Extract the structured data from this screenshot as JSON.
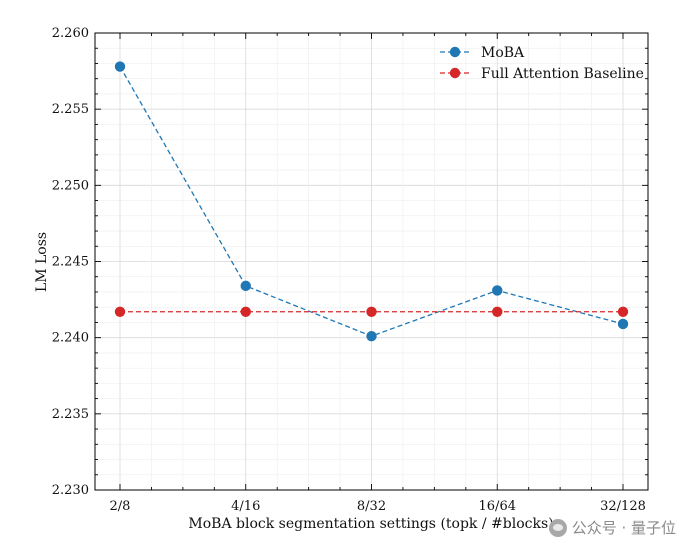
{
  "chart_data": {
    "type": "line",
    "title": "",
    "xlabel": "MoBA block segmentation settings (topk / #blocks)",
    "ylabel": "LM Loss",
    "categories": [
      "2/8",
      "4/16",
      "8/32",
      "16/64",
      "32/128"
    ],
    "ylim": [
      2.23,
      2.26
    ],
    "yticks": [
      "2.230",
      "2.235",
      "2.240",
      "2.245",
      "2.250",
      "2.255",
      "2.260"
    ],
    "grid": true,
    "legend_position": "top-right",
    "series": [
      {
        "name": "MoBA",
        "color": "#1f77b4",
        "values": [
          2.2578,
          2.2434,
          2.2401,
          2.2431,
          2.2409
        ]
      },
      {
        "name": "Full Attention Baseline",
        "color": "#d62728",
        "values": [
          2.2417,
          2.2417,
          2.2417,
          2.2417,
          2.2417
        ]
      }
    ]
  },
  "watermark": {
    "text": "公众号 · 量子位"
  }
}
